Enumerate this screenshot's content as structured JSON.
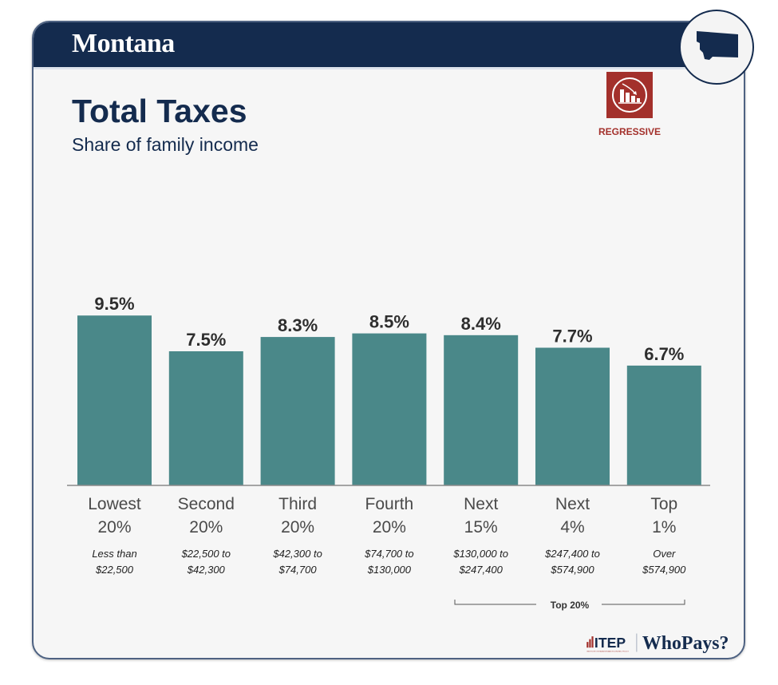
{
  "header": {
    "state": "Montana"
  },
  "title": "Total Taxes",
  "subtitle": "Share of family income",
  "badge": {
    "icon": "regressive-chart-icon",
    "label": "REGRESSIVE",
    "color": "#a3302b"
  },
  "map": {
    "icon": "montana-state-icon"
  },
  "colors": {
    "bar": "#4a8889",
    "navy": "#142b4e"
  },
  "chart_data": {
    "type": "bar",
    "title": "Total Taxes",
    "subtitle": "Share of family income",
    "categories": [
      "Lowest 20%",
      "Second 20%",
      "Third 20%",
      "Fourth 20%",
      "Next 15%",
      "Next 4%",
      "Top 1%"
    ],
    "category_lines": [
      [
        "Lowest",
        "20%"
      ],
      [
        "Second",
        "20%"
      ],
      [
        "Third",
        "20%"
      ],
      [
        "Fourth",
        "20%"
      ],
      [
        "Next",
        "15%"
      ],
      [
        "Next",
        "4%"
      ],
      [
        "Top",
        "1%"
      ]
    ],
    "income_ranges": [
      [
        "Less than",
        "$22,500"
      ],
      [
        "$22,500 to",
        "$42,300"
      ],
      [
        "$42,300 to",
        "$74,700"
      ],
      [
        "$74,700 to",
        "$130,000"
      ],
      [
        "$130,000 to",
        "$247,400"
      ],
      [
        "$247,400 to",
        "$574,900"
      ],
      [
        "Over",
        "$574,900"
      ]
    ],
    "values": [
      9.5,
      7.5,
      8.3,
      8.5,
      8.4,
      7.7,
      6.7
    ],
    "data_labels": [
      "9.5%",
      "7.5%",
      "8.3%",
      "8.5%",
      "8.4%",
      "7.7%",
      "6.7%"
    ],
    "group_bracket": {
      "label": "Top 20%",
      "spans": [
        "Next 15%",
        "Next 4%",
        "Top 1%"
      ]
    },
    "xlabel": "",
    "ylabel": "",
    "ylim": [
      0,
      9.5
    ],
    "grid": false
  },
  "footer": {
    "org": "ITEP",
    "org_sub": "INSTITUTE ON TAXATION AND ECONOMIC POLICY",
    "product": "WhoPays?"
  }
}
